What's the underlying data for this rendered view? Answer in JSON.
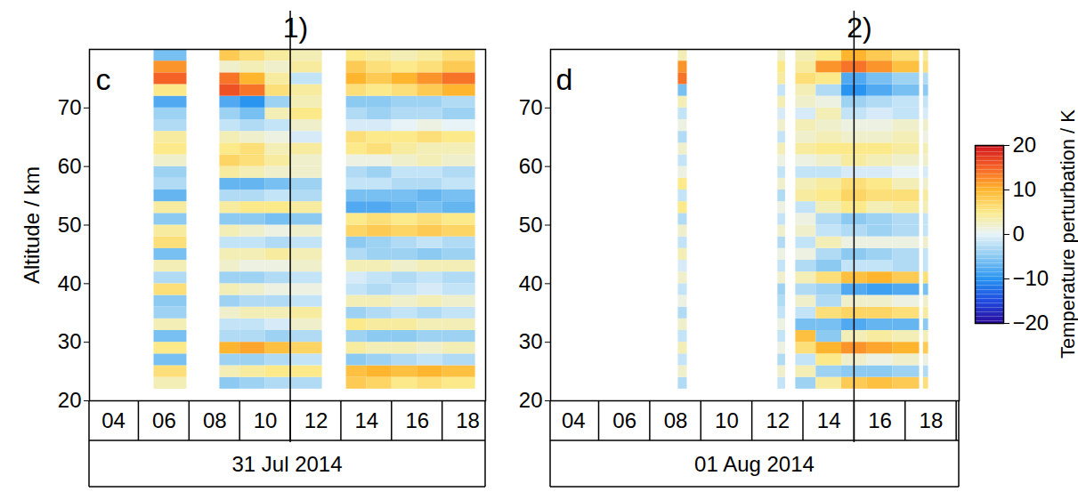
{
  "chart_data": {
    "type": "heatmap",
    "ylabel": "Altitude / km",
    "ylim": [
      20,
      80
    ],
    "yticks": [
      20,
      30,
      40,
      50,
      60,
      70
    ],
    "colorbar": {
      "label": "Temperature perturbation / K",
      "range": [
        -20,
        20
      ],
      "ticks": [
        -20,
        -10,
        0,
        10,
        20
      ]
    },
    "panels": [
      {
        "label": "c",
        "date": "31 Jul 2014",
        "xlim": [
          3.05,
          18.7
        ],
        "xticks": [
          {
            "value": 4,
            "label": "04"
          },
          {
            "value": 6,
            "label": "06"
          },
          {
            "value": 8,
            "label": "08"
          },
          {
            "value": 10,
            "label": "10"
          },
          {
            "value": 12,
            "label": "12"
          },
          {
            "value": 14,
            "label": "14"
          },
          {
            "value": 16,
            "label": "16"
          },
          {
            "value": 18,
            "label": "18"
          }
        ],
        "annotations": [
          {
            "x": 11,
            "text": "1)"
          }
        ],
        "time_bins": [
          5.6,
          6.9,
          8.2,
          9,
          10,
          11,
          12.25,
          13.2,
          14,
          15,
          16,
          17,
          18.3
        ],
        "altitude_bins": [
          22,
          24,
          26,
          28,
          30,
          32,
          34,
          36,
          38,
          40,
          42,
          44,
          46,
          48,
          50,
          52,
          54,
          56,
          58,
          60,
          62,
          64,
          66,
          68,
          70,
          72,
          74,
          76,
          78,
          80
        ],
        "values": [
          [
            3,
            6,
            -6,
            5,
            -6,
            3,
            -4,
            -5,
            6,
            -3,
            3,
            -6,
            6,
            4,
            -5,
            4,
            -7,
            -3,
            -4,
            2,
            5,
            4,
            -3,
            -4,
            -8,
            5,
            15,
            12,
            -6
          ],
          null,
          [
            -5,
            3,
            -4,
            10,
            -3,
            -2,
            2,
            -4,
            3,
            -4,
            2,
            3,
            -2,
            3,
            -5,
            4,
            -3,
            -7,
            4,
            7,
            5,
            3,
            -2,
            -4,
            -8,
            16,
            14,
            2,
            8
          ],
          [
            -4,
            4,
            -4,
            11,
            -3,
            -2,
            3,
            -3,
            2,
            -4,
            1,
            3,
            -2,
            2,
            -5,
            5,
            -3,
            -7,
            3,
            6,
            6,
            2,
            -3,
            -6,
            -10,
            14,
            10,
            3,
            6
          ],
          [
            -3,
            5,
            -3,
            9,
            -4,
            -1,
            3,
            -3,
            1,
            -3,
            1,
            4,
            -3,
            1,
            -6,
            5,
            -2,
            -6,
            2,
            4,
            3,
            1,
            -2,
            3,
            -4,
            6,
            4,
            2,
            4
          ],
          [
            -3,
            5,
            -2,
            7,
            -3,
            2,
            4,
            -2,
            1,
            -2,
            2,
            3,
            -2,
            2,
            -5,
            4,
            -3,
            -4,
            2,
            2,
            4,
            -1,
            2,
            5,
            3,
            4,
            -2,
            4,
            3
          ],
          null,
          [
            8,
            9,
            -5,
            4,
            -4,
            5,
            -4,
            3,
            -2,
            -1,
            3,
            -3,
            -5,
            7,
            5,
            -8,
            -6,
            -2,
            -3,
            1,
            5,
            6,
            -1,
            -3,
            -5,
            6,
            10,
            8,
            5
          ],
          [
            7,
            10,
            -4,
            3,
            -5,
            4,
            -3,
            3,
            -3,
            -2,
            3,
            -4,
            -4,
            8,
            6,
            -8,
            -6,
            -2,
            -4,
            1,
            6,
            5,
            -1,
            -4,
            -5,
            5,
            8,
            6,
            4
          ],
          [
            5,
            9,
            -3,
            3,
            -5,
            4,
            -2,
            2,
            -2,
            -3,
            2,
            -4,
            -3,
            7,
            5,
            -7,
            -6,
            -3,
            -2,
            2,
            4,
            5,
            0,
            -3,
            -4,
            6,
            10,
            5,
            3
          ],
          [
            6,
            10,
            -2,
            2,
            -4,
            3,
            -3,
            3,
            -1,
            -2,
            3,
            -5,
            -2,
            8,
            6,
            -6,
            -7,
            -3,
            -2,
            3,
            3,
            6,
            1,
            -3,
            -4,
            8,
            12,
            6,
            4
          ],
          [
            5,
            9,
            -3,
            3,
            -4,
            3,
            -2,
            2,
            -2,
            -3,
            3,
            -4,
            -3,
            7,
            5,
            -7,
            -6,
            -2,
            -3,
            2,
            3,
            5,
            0,
            -4,
            -3,
            10,
            14,
            8,
            6
          ]
        ]
      },
      {
        "label": "d",
        "date": "01 Aug 2014",
        "xlim": [
          3.1,
          19.1
        ],
        "xticks": [
          {
            "value": 4,
            "label": "04"
          },
          {
            "value": 6,
            "label": "06"
          },
          {
            "value": 8,
            "label": "08"
          },
          {
            "value": 10,
            "label": "10"
          },
          {
            "value": 12,
            "label": "12"
          },
          {
            "value": 14,
            "label": "14"
          },
          {
            "value": 16,
            "label": "16"
          },
          {
            "value": 18,
            "label": "18"
          }
        ],
        "annotations": [
          {
            "x": 15,
            "text": "2)"
          }
        ],
        "time_bins": [
          8.1,
          8.45,
          12.0,
          12.3,
          12.7,
          13.5,
          14.5,
          15.5,
          16.5,
          17.55,
          17.7,
          17.9
        ],
        "altitude_bins": [
          22,
          24,
          26,
          28,
          30,
          32,
          34,
          36,
          38,
          40,
          42,
          44,
          46,
          48,
          50,
          52,
          54,
          56,
          58,
          60,
          62,
          64,
          66,
          68,
          70,
          72,
          74,
          76,
          78,
          80
        ],
        "values": [
          [
            -3,
            2,
            -2,
            3,
            -2,
            2,
            -3,
            1,
            -2,
            2,
            -1,
            3,
            -2,
            2,
            -3,
            5,
            -2,
            5,
            1,
            -2,
            2,
            -3,
            1,
            -2,
            3,
            -6,
            14,
            12,
            3
          ],
          null,
          [
            -2,
            2,
            -3,
            1,
            -2,
            1,
            -2,
            -3,
            -4,
            2,
            -2,
            1,
            -3,
            2,
            -2,
            1,
            -3,
            2,
            -2,
            1,
            3,
            -2,
            2,
            -1,
            3,
            -2,
            4,
            5,
            2
          ],
          null,
          [
            -4,
            3,
            -2,
            6,
            9,
            -6,
            -2,
            2,
            -3,
            3,
            -3,
            1,
            -2,
            2,
            1,
            -2,
            4,
            3,
            -2,
            1,
            4,
            2,
            3,
            -1,
            2,
            3,
            6,
            4,
            3
          ],
          [
            4,
            -4,
            5,
            10,
            -5,
            -6,
            6,
            -3,
            -4,
            6,
            -5,
            -3,
            3,
            -2,
            -3,
            3,
            5,
            4,
            -2,
            2,
            5,
            3,
            2,
            3,
            1,
            -3,
            5,
            12,
            5
          ],
          [
            8,
            -5,
            2,
            12,
            3,
            -8,
            7,
            2,
            -8,
            9,
            -2,
            -5,
            1,
            -3,
            -5,
            5,
            7,
            6,
            -1,
            4,
            5,
            2,
            1,
            -2,
            -4,
            -10,
            -8,
            14,
            10
          ],
          [
            9,
            -5,
            1,
            11,
            4,
            -7,
            7,
            2,
            -9,
            10,
            -2,
            -4,
            1,
            -4,
            -4,
            3,
            6,
            5,
            -1,
            3,
            5,
            2,
            1,
            -1,
            -3,
            -8,
            -6,
            12,
            8
          ],
          [
            8,
            -4,
            2,
            10,
            3,
            -7,
            6,
            1,
            -8,
            8,
            -3,
            -3,
            1,
            -3,
            -3,
            4,
            6,
            3,
            0,
            2,
            4,
            3,
            2,
            -2,
            -2,
            -6,
            -4,
            9,
            6
          ],
          null,
          [
            6,
            -3,
            1,
            8,
            3,
            -5,
            4,
            2,
            -6,
            6,
            -2,
            -2,
            2,
            -2,
            -2,
            3,
            4,
            2,
            -1,
            2,
            3,
            1,
            2,
            -1,
            -2,
            -5,
            -3,
            6,
            4
          ]
        ]
      }
    ]
  }
}
